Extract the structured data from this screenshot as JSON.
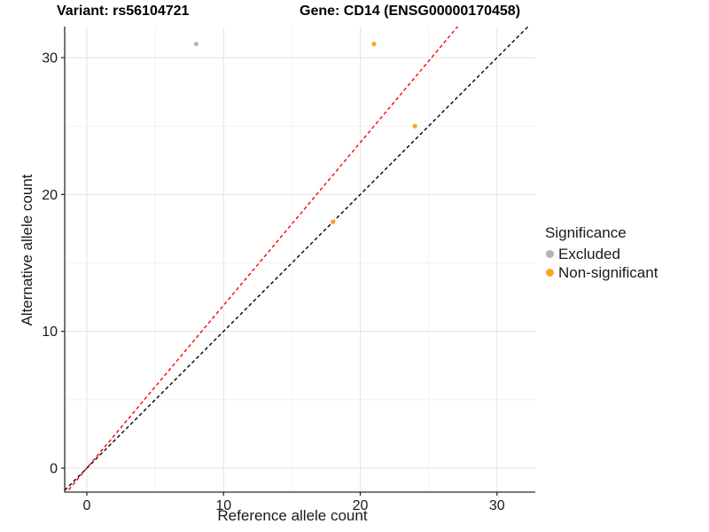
{
  "titles": {
    "variant": "Variant: rs56104721",
    "gene": "Gene: CD14 (ENSG00000170458)"
  },
  "colors": {
    "excluded_gray": "#B5B5B5",
    "nonsignificant_orange": "#FFA321",
    "identity_line_black": "#000000",
    "ratio_line_red": "#FF0000",
    "grid_major": "#E3E3E3",
    "grid_minor": "#F2F2F2",
    "axis_line": "#2b2b2b",
    "tick_text": "#1a1a1a"
  },
  "chart_data": {
    "type": "scatter",
    "title": "Variant: rs56104721   Gene: CD14 (ENSG00000170458)",
    "xlabel": "Reference allele count",
    "ylabel": "Alternative allele count",
    "xlim": [
      -1.62,
      32.8
    ],
    "ylim": [
      -1.75,
      32.27
    ],
    "x_ticks": [
      0,
      10,
      20,
      30
    ],
    "y_ticks": [
      0,
      10,
      20,
      30
    ],
    "x_minor_ticks": [
      5,
      15,
      25
    ],
    "y_minor_ticks": [
      5,
      15,
      25
    ],
    "grid": "major+minor",
    "legend_position": "right",
    "series": [
      {
        "name": "Excluded",
        "color": "#B5B5B5",
        "points": [
          {
            "x": 8,
            "y": 31
          }
        ]
      },
      {
        "name": "Non-significant",
        "color": "#FFA321",
        "points": [
          {
            "x": 21,
            "y": 31
          },
          {
            "x": 24,
            "y": 25
          },
          {
            "x": 18,
            "y": 18
          }
        ]
      }
    ],
    "reference_lines": [
      {
        "name": "identity-line",
        "slope": 1.0,
        "intercept": 0,
        "color": "#000000",
        "style": "dashed"
      },
      {
        "name": "ratio-line",
        "slope": 1.19,
        "intercept": 0,
        "color": "#FF0000",
        "style": "dashed"
      }
    ]
  },
  "legend": {
    "title": "Significance",
    "items": [
      {
        "label": "Excluded",
        "color": "#B5B5B5"
      },
      {
        "label": "Non-significant",
        "color": "#FFA321"
      }
    ]
  }
}
